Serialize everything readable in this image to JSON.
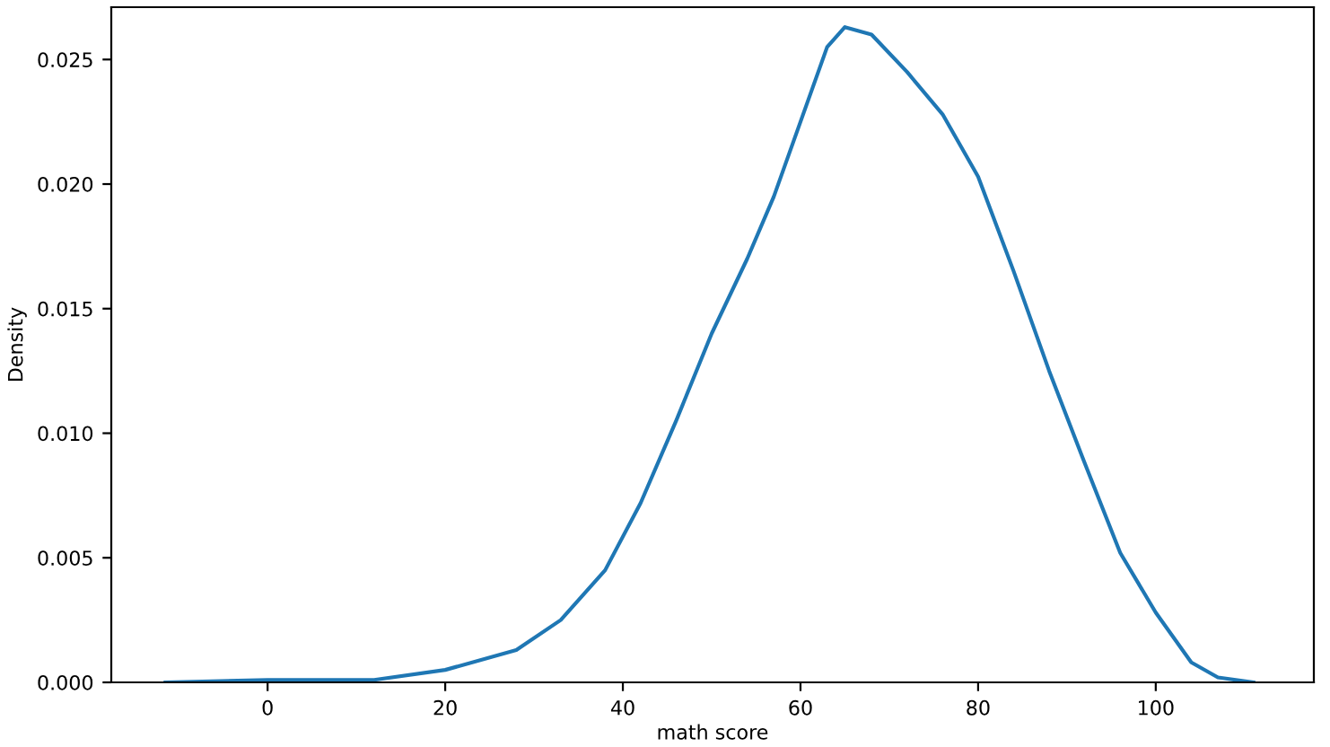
{
  "chart_data": {
    "type": "line",
    "xlabel": "math score",
    "ylabel": "Density",
    "x": [
      -11.5,
      0,
      12,
      20,
      28,
      33,
      38,
      42,
      46,
      50,
      54,
      57,
      60,
      63,
      65,
      68,
      72,
      76,
      80,
      84,
      88,
      92,
      96,
      100,
      104,
      107,
      111
    ],
    "series": [
      {
        "color": "#1f77b4",
        "values": [
          0.0,
          0.0001,
          0.0001,
          0.0005,
          0.0013,
          0.0025,
          0.0045,
          0.0072,
          0.0105,
          0.014,
          0.017,
          0.0195,
          0.0225,
          0.0255,
          0.0263,
          0.026,
          0.0245,
          0.0228,
          0.0203,
          0.0165,
          0.0125,
          0.0088,
          0.0052,
          0.0028,
          0.0008,
          0.0002,
          0.0
        ]
      }
    ],
    "xlim": [
      -17.6,
      117.8
    ],
    "ylim": [
      0,
      0.0271
    ],
    "xticks": [
      0,
      20,
      40,
      60,
      80,
      100
    ],
    "yticks": [
      {
        "value": 0,
        "label": "0.000"
      },
      {
        "value": 0.005,
        "label": "0.005"
      },
      {
        "value": 0.01,
        "label": "0.010"
      },
      {
        "value": 0.015,
        "label": "0.015"
      },
      {
        "value": 0.02,
        "label": "0.020"
      },
      {
        "value": 0.025,
        "label": "0.025"
      }
    ],
    "grid": false,
    "legend": false,
    "marker": "none",
    "line_style": "solid"
  }
}
